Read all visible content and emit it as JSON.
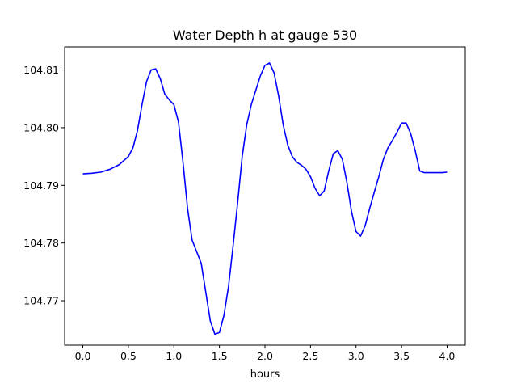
{
  "chart_data": {
    "type": "line",
    "title": "Water Depth h at gauge 530",
    "xlabel": "hours",
    "ylabel": "",
    "xlim": [
      -0.2,
      4.2
    ],
    "ylim": [
      104.7623,
      104.814
    ],
    "grid": false,
    "xticks": [
      0.0,
      0.5,
      1.0,
      1.5,
      2.0,
      2.5,
      3.0,
      3.5,
      4.0
    ],
    "xtick_labels": [
      "0.0",
      "0.5",
      "1.0",
      "1.5",
      "2.0",
      "2.5",
      "3.0",
      "3.5",
      "4.0"
    ],
    "yticks": [
      104.77,
      104.78,
      104.79,
      104.8,
      104.81
    ],
    "ytick_labels": [
      "104.77",
      "104.78",
      "104.79",
      "104.80",
      "104.81"
    ],
    "series": [
      {
        "color": "#0000ff",
        "x": [
          0.0,
          0.1,
          0.2,
          0.3,
          0.4,
          0.5,
          0.55,
          0.6,
          0.65,
          0.7,
          0.75,
          0.8,
          0.85,
          0.9,
          0.95,
          1.0,
          1.05,
          1.1,
          1.15,
          1.2,
          1.25,
          1.3,
          1.35,
          1.4,
          1.45,
          1.5,
          1.55,
          1.6,
          1.65,
          1.7,
          1.75,
          1.8,
          1.85,
          1.9,
          1.95,
          2.0,
          2.05,
          2.1,
          2.15,
          2.2,
          2.25,
          2.3,
          2.35,
          2.4,
          2.45,
          2.5,
          2.55,
          2.6,
          2.65,
          2.7,
          2.75,
          2.8,
          2.85,
          2.9,
          2.95,
          3.0,
          3.05,
          3.1,
          3.15,
          3.2,
          3.25,
          3.3,
          3.35,
          3.4,
          3.45,
          3.5,
          3.55,
          3.6,
          3.65,
          3.7,
          3.75,
          3.8,
          3.85,
          3.9,
          3.95,
          4.0
        ],
        "y": [
          104.792,
          104.7921,
          104.7923,
          104.7928,
          104.7936,
          104.795,
          104.7965,
          104.7995,
          104.804,
          104.808,
          104.81,
          104.8102,
          104.8085,
          104.8058,
          104.8048,
          104.804,
          104.801,
          104.794,
          104.786,
          104.7805,
          104.7785,
          104.7765,
          104.7715,
          104.7665,
          104.7642,
          104.7645,
          104.7675,
          104.7725,
          104.7795,
          104.787,
          104.795,
          104.8005,
          104.804,
          104.8065,
          104.809,
          104.8108,
          104.8112,
          104.8095,
          104.8055,
          104.8005,
          104.797,
          104.795,
          104.794,
          104.7935,
          104.7928,
          104.7915,
          104.7895,
          104.7882,
          104.789,
          104.7925,
          104.7955,
          104.796,
          104.7945,
          104.7905,
          104.7855,
          104.782,
          104.7812,
          104.783,
          104.786,
          104.7888,
          104.7915,
          104.7945,
          104.7965,
          104.7978,
          104.7992,
          104.8008,
          104.8008,
          104.799,
          104.796,
          104.7925,
          104.7922,
          104.7922,
          104.7922,
          104.7922,
          104.7922,
          104.7923
        ]
      }
    ]
  }
}
